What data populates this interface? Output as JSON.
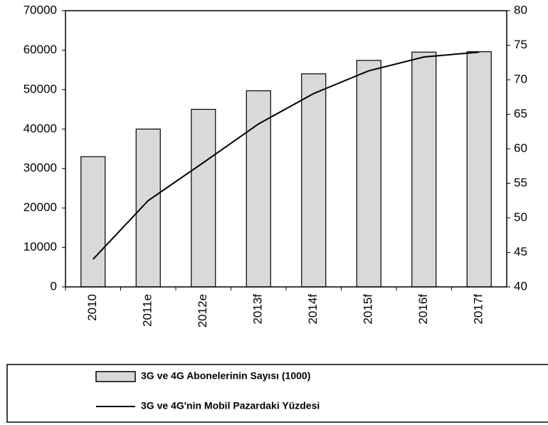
{
  "chart_data": {
    "type": "bar_line",
    "categories": [
      "2010",
      "2011e",
      "2012e",
      "2013f",
      "2014f",
      "2015f",
      "2016f",
      "2017f"
    ],
    "series": [
      {
        "name": "3G ve 4G Abonelerinin Sayısı (1000)",
        "type": "bar",
        "color": "#d9d9d9",
        "values": [
          33000,
          40000,
          45000,
          49700,
          54000,
          57400,
          59500,
          59600
        ]
      },
      {
        "name": "3G ve 4G'nin Mobil Pazardaki Yüzdesi",
        "type": "line",
        "axis": "y2",
        "color": "#000000",
        "values": [
          44,
          52.5,
          58,
          63.6,
          68,
          71.3,
          73.3,
          74
        ]
      }
    ],
    "ylim": [
      0,
      70000
    ],
    "yticks": [
      0,
      10000,
      20000,
      30000,
      40000,
      50000,
      60000,
      70000
    ],
    "y2lim": [
      40,
      80
    ],
    "y2ticks": [
      40,
      45,
      50,
      55,
      60,
      65,
      70,
      75,
      80
    ],
    "grid": false,
    "legend": "bottom"
  }
}
